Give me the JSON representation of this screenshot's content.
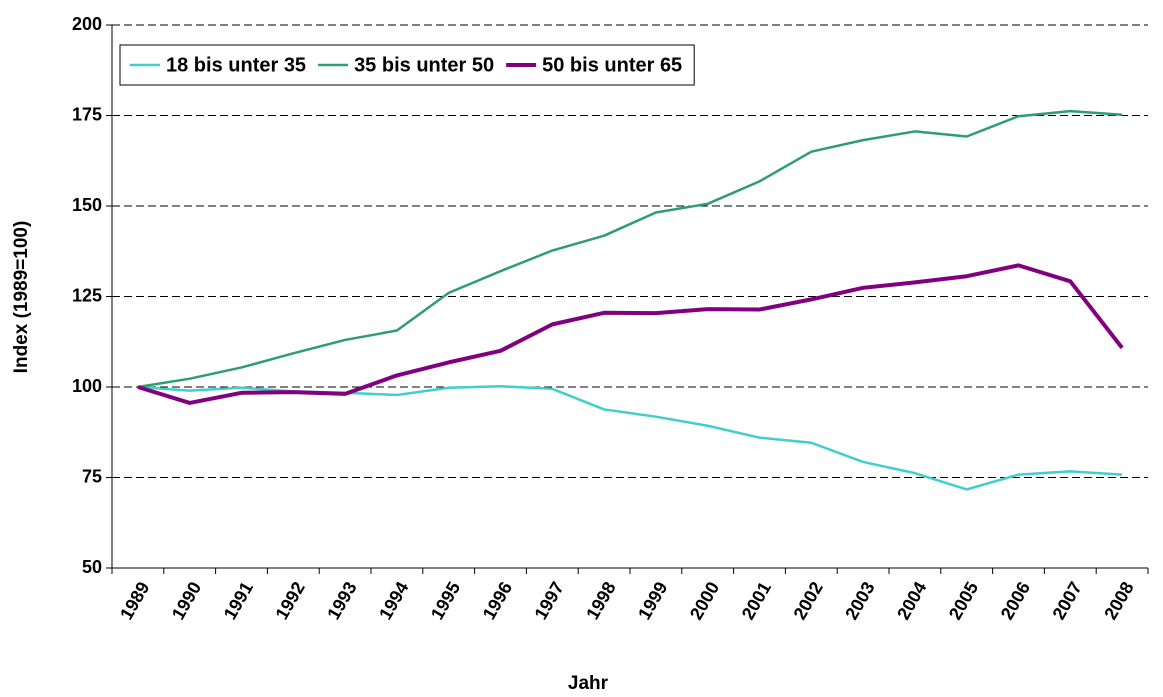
{
  "chart_data": {
    "type": "line",
    "x_label": "Jahr",
    "y_label": "Index (1989=100)",
    "categories": [
      "1989",
      "1990",
      "1991",
      "1992",
      "1993",
      "1994",
      "1995",
      "1996",
      "1997",
      "1998",
      "1999",
      "2000",
      "2001",
      "2002",
      "2003",
      "2004",
      "2005",
      "2006",
      "2007",
      "2008"
    ],
    "series": [
      {
        "name": "18 bis unter 35",
        "color": "#40cfc9",
        "width": 2.5,
        "values": [
          100,
          99,
          99.8,
          98.8,
          98.4,
          97.8,
          99.8,
          100.2,
          99.5,
          93.8,
          91.8,
          89.3,
          86,
          84.6,
          79.3,
          76.2,
          71.7,
          75.8,
          76.7,
          75.8
        ]
      },
      {
        "name": "35 bis unter 50",
        "color": "#2e9e6e",
        "width": 2.5,
        "values": [
          100,
          102.3,
          105.4,
          109.3,
          113,
          115.6,
          126,
          132,
          137.7,
          141.8,
          148.2,
          150.6,
          156.8,
          165,
          168.2,
          170.6,
          169.2,
          174.8,
          176.2,
          175.2
        ]
      },
      {
        "name": "50 bis unter 65",
        "color": "#800080",
        "width": 4,
        "values": [
          100,
          95.6,
          98.4,
          98.6,
          98.1,
          103.2,
          106.8,
          110,
          117.3,
          120.5,
          120.4,
          121.5,
          121.4,
          124.2,
          127.4,
          128.9,
          130.6,
          133.6,
          129.2,
          110.8
        ]
      }
    ],
    "ylim": [
      50,
      200
    ],
    "yticks": [
      50,
      75,
      100,
      125,
      150,
      175,
      200
    ],
    "grid": true,
    "legend": "top-left"
  }
}
